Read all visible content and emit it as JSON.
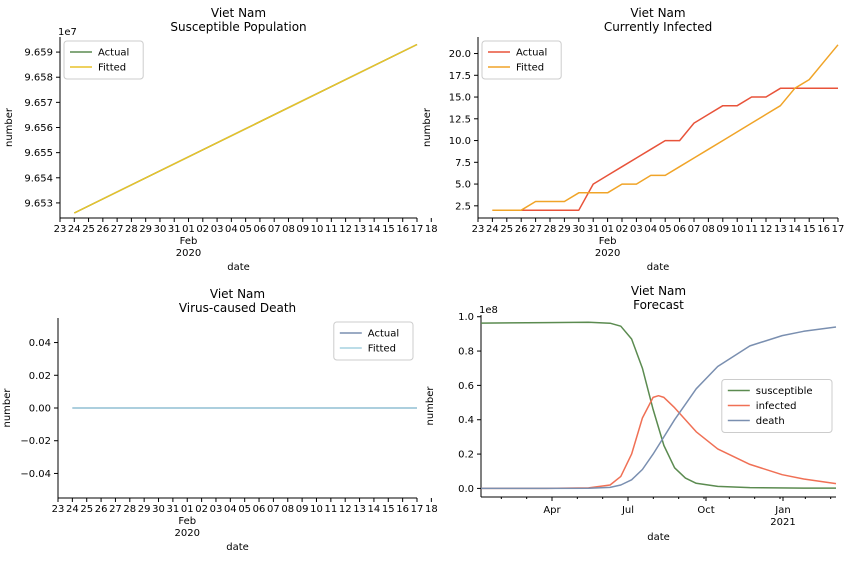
{
  "colors": {
    "axis": "#000000",
    "legend_border": "#cccccc"
  },
  "chart_data": [
    {
      "type": "line",
      "title": "Viet Nam\nSusceptible Population",
      "xlabel": "date",
      "ylabel": "number",
      "offset_label": "1e7",
      "x_tick_labels": [
        "23",
        "24",
        "25",
        "26",
        "27",
        "28",
        "29",
        "30",
        "31",
        "01",
        "02",
        "03",
        "04",
        "05",
        "06",
        "07",
        "08",
        "09",
        "10",
        "11",
        "12",
        "13",
        "14",
        "15",
        "16",
        "17",
        "18"
      ],
      "x_major_label": [
        "Feb",
        "2020"
      ],
      "y_ticks": [
        9.653,
        9.654,
        9.655,
        9.656,
        9.657,
        9.658,
        9.659
      ],
      "y_tick_labels": [
        "9.653",
        "9.654",
        "9.655",
        "9.656",
        "9.657",
        "9.658",
        "9.659"
      ],
      "ylim": [
        9.6524,
        9.6596
      ],
      "xlim": [
        23,
        48
      ],
      "legend_position": "top-left",
      "series": [
        {
          "name": "Actual",
          "color": "#5b8b50",
          "x": [
            24,
            48
          ],
          "values": [
            9.6526,
            9.6593
          ]
        },
        {
          "name": "Fitted",
          "color": "#e8c22a",
          "x": [
            24,
            48
          ],
          "values": [
            9.6526,
            9.6593
          ]
        }
      ]
    },
    {
      "type": "line",
      "title": "Viet Nam\nCurrently Infected",
      "xlabel": "date",
      "ylabel": "number",
      "x_tick_labels": [
        "23",
        "24",
        "25",
        "26",
        "27",
        "28",
        "29",
        "30",
        "31",
        "01",
        "02",
        "03",
        "04",
        "05",
        "06",
        "07",
        "08",
        "09",
        "10",
        "11",
        "12",
        "13",
        "14",
        "15",
        "16",
        "17",
        "18"
      ],
      "x_major_label": [
        "Feb",
        "2020"
      ],
      "y_ticks": [
        2.5,
        5.0,
        7.5,
        10.0,
        12.5,
        15.0,
        17.5,
        20.0
      ],
      "y_tick_labels": [
        "2.5",
        "5.0",
        "7.5",
        "10.0",
        "12.5",
        "15.0",
        "17.5",
        "20.0"
      ],
      "ylim": [
        1.1,
        21.9
      ],
      "xlim": [
        23,
        48
      ],
      "legend_position": "top-left",
      "series": [
        {
          "name": "Actual",
          "color": "#e8533a",
          "x": [
            24,
            25,
            26,
            27,
            28,
            29,
            30,
            31,
            32,
            33,
            34,
            35,
            36,
            37,
            38,
            39,
            40,
            41,
            42,
            43,
            44,
            45,
            46,
            47,
            48
          ],
          "values": [
            2,
            2,
            2,
            2,
            2,
            2,
            2,
            5,
            6,
            7,
            8,
            9,
            10,
            10,
            12,
            13,
            14,
            14,
            15,
            15,
            16,
            16,
            16,
            16,
            16
          ]
        },
        {
          "name": "Fitted",
          "color": "#f0a428",
          "x": [
            24,
            25,
            26,
            27,
            28,
            29,
            30,
            31,
            32,
            33,
            34,
            35,
            36,
            37,
            38,
            39,
            40,
            41,
            42,
            43,
            44,
            45,
            46,
            47,
            48
          ],
          "values": [
            2,
            2,
            2,
            3,
            3,
            3,
            4,
            4,
            4,
            5,
            5,
            6,
            6,
            7,
            8,
            9,
            10,
            11,
            12,
            13,
            14,
            16,
            17,
            19,
            21
          ]
        }
      ]
    },
    {
      "type": "line",
      "title": "Viet Nam\nVirus-caused Death",
      "xlabel": "date",
      "ylabel": "number",
      "x_tick_labels": [
        "23",
        "24",
        "25",
        "26",
        "27",
        "28",
        "29",
        "30",
        "31",
        "01",
        "02",
        "03",
        "04",
        "05",
        "06",
        "07",
        "08",
        "09",
        "10",
        "11",
        "12",
        "13",
        "14",
        "15",
        "16",
        "17",
        "18"
      ],
      "x_major_label": [
        "Feb",
        "2020"
      ],
      "y_ticks": [
        -0.04,
        -0.02,
        0.0,
        0.02,
        0.04
      ],
      "y_tick_labels": [
        "−0.04",
        "−0.02",
        "0.00",
        "0.02",
        "0.04"
      ],
      "ylim": [
        -0.055,
        0.055
      ],
      "xlim": [
        23,
        48
      ],
      "legend_position": "top-right",
      "series": [
        {
          "name": "Actual",
          "color": "#7a8fb0",
          "x": [
            24,
            48
          ],
          "values": [
            0,
            0
          ]
        },
        {
          "name": "Fitted",
          "color": "#a6d2e0",
          "x": [
            24,
            48
          ],
          "values": [
            0,
            0
          ]
        }
      ]
    },
    {
      "type": "line",
      "title": "Viet Nam\nForecast",
      "xlabel": "date",
      "ylabel": "number",
      "offset_label": "1e8",
      "x_tick_labels": [
        "Apr",
        "Jul",
        "Oct",
        "Jan"
      ],
      "x_major_label": [
        "",
        "2021"
      ],
      "y_ticks": [
        0.0,
        0.2,
        0.4,
        0.6,
        0.8,
        1.0
      ],
      "y_tick_labels": [
        "0.0",
        "0.2",
        "0.4",
        "0.6",
        "0.8",
        "1.0"
      ],
      "ylim": [
        -0.05,
        1.01
      ],
      "legend_position": "center-right",
      "series": [
        {
          "name": "susceptible",
          "color": "#5b8b50",
          "x": [
            0,
            60,
            100,
            120,
            130,
            140,
            150,
            160,
            170,
            180,
            190,
            200,
            220,
            250,
            300,
            330
          ],
          "values": [
            0.963,
            0.966,
            0.968,
            0.962,
            0.945,
            0.87,
            0.7,
            0.46,
            0.25,
            0.12,
            0.06,
            0.03,
            0.012,
            0.005,
            0.002,
            0.002
          ]
        },
        {
          "name": "infected",
          "color": "#f07055",
          "x": [
            0,
            60,
            100,
            120,
            130,
            140,
            150,
            160,
            165,
            170,
            180,
            190,
            200,
            220,
            250,
            280,
            300,
            330
          ],
          "values": [
            0,
            0,
            0.003,
            0.02,
            0.07,
            0.2,
            0.41,
            0.53,
            0.54,
            0.53,
            0.47,
            0.4,
            0.33,
            0.23,
            0.14,
            0.08,
            0.055,
            0.028
          ]
        },
        {
          "name": "death",
          "color": "#7a8fb0",
          "x": [
            0,
            60,
            100,
            120,
            130,
            140,
            150,
            160,
            170,
            180,
            190,
            200,
            220,
            250,
            280,
            300,
            330
          ],
          "values": [
            0,
            0,
            0.001,
            0.006,
            0.02,
            0.05,
            0.11,
            0.2,
            0.3,
            0.4,
            0.49,
            0.58,
            0.71,
            0.83,
            0.89,
            0.915,
            0.94
          ]
        }
      ]
    }
  ]
}
